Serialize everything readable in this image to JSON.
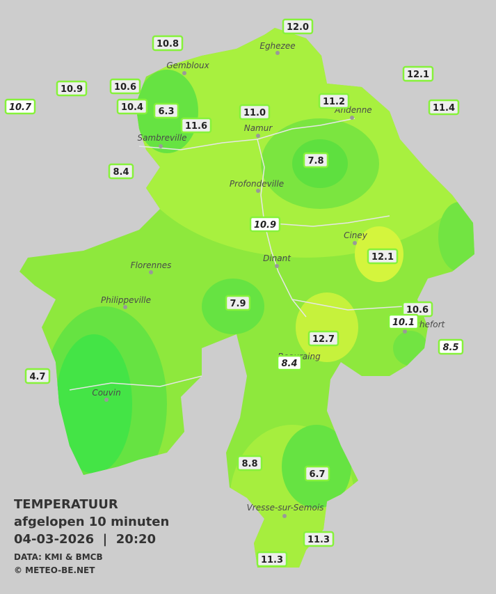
{
  "title": {
    "heading": "TEMPERATUUR",
    "subtitle": "afgelopen 10 minuten",
    "timestamp": "04-03-2026  |  20:20",
    "source": "DATA: KMI & BMCB",
    "credit": "© METEO-BE.NET"
  },
  "cities": [
    "Eghezee",
    "Gembloux",
    "Andenne",
    "Namur",
    "Sambreville",
    "Profondeville",
    "Ciney",
    "Dinant",
    "Florennes",
    "Philippeville",
    "Rochefort",
    "Beauraing",
    "Couvin",
    "Vresse-sur-Semois"
  ],
  "stations": [
    {
      "label": "12.0",
      "italic": false
    },
    {
      "label": "10.8",
      "italic": false
    },
    {
      "label": "12.1",
      "italic": false
    },
    {
      "label": "10.9",
      "italic": false
    },
    {
      "label": "10.6",
      "italic": false
    },
    {
      "label": "10.7",
      "italic": true
    },
    {
      "label": "10.4",
      "italic": false
    },
    {
      "label": "6.3",
      "italic": false
    },
    {
      "label": "11.6",
      "italic": false
    },
    {
      "label": "11.0",
      "italic": false
    },
    {
      "label": "11.2",
      "italic": false
    },
    {
      "label": "11.4",
      "italic": false
    },
    {
      "label": "8.4",
      "italic": false
    },
    {
      "label": "7.8",
      "italic": false
    },
    {
      "label": "10.9",
      "italic": true
    },
    {
      "label": "12.1",
      "italic": false
    },
    {
      "label": "7.9",
      "italic": false
    },
    {
      "label": "10.6",
      "italic": false
    },
    {
      "label": "10.1",
      "italic": true
    },
    {
      "label": "12.7",
      "italic": false
    },
    {
      "label": "8.5",
      "italic": true
    },
    {
      "label": "8.4",
      "italic": true
    },
    {
      "label": "4.7",
      "italic": false
    },
    {
      "label": "8.8",
      "italic": false
    },
    {
      "label": "6.7",
      "italic": false
    },
    {
      "label": "11.3",
      "italic": false
    },
    {
      "label": "11.3",
      "italic": false
    }
  ]
}
